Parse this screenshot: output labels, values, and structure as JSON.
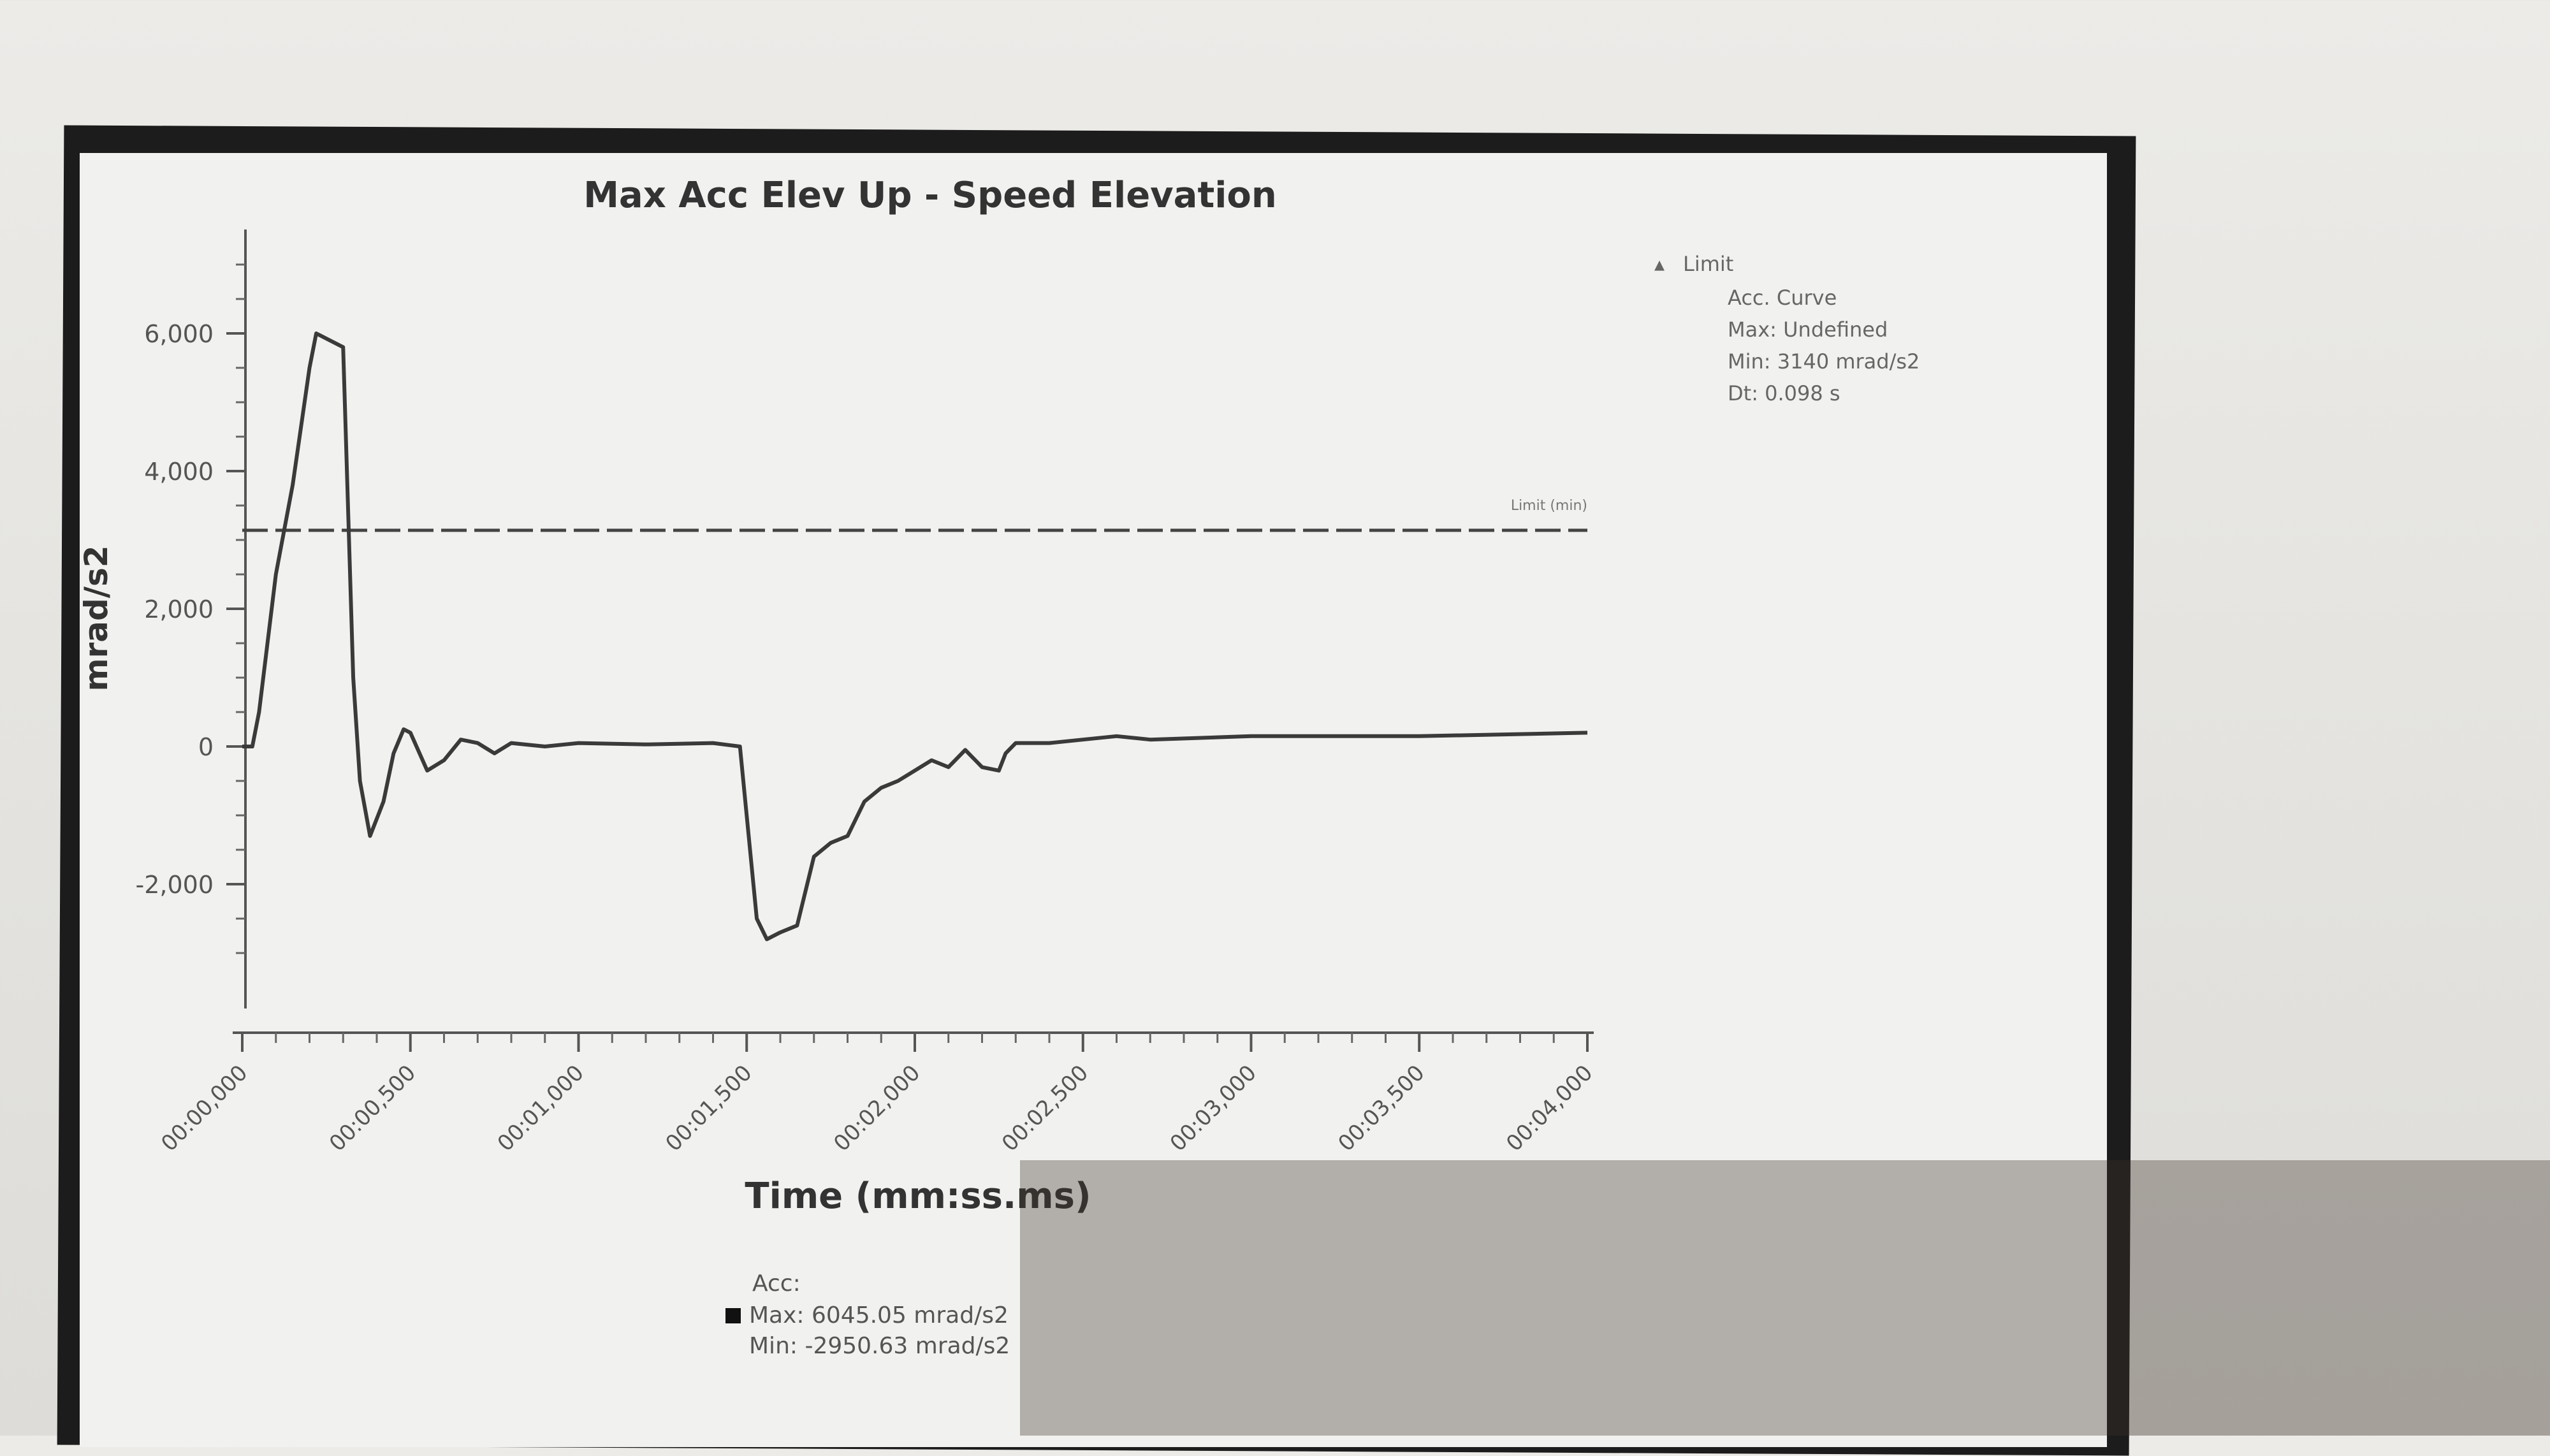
{
  "chart_data": {
    "type": "line",
    "title": "Max Acc Elev Up - Speed Elevation",
    "xlabel": "Time (mm:ss.ms)",
    "ylabel": "mrad/s2",
    "xlim": [
      0,
      4.0
    ],
    "ylim": [
      -3500,
      7500
    ],
    "xticks": [
      {
        "v": 0,
        "label": "00:00,000"
      },
      {
        "v": 0.5,
        "label": "00:00,500"
      },
      {
        "v": 1.0,
        "label": "00:01,000"
      },
      {
        "v": 1.5,
        "label": "00:01,500"
      },
      {
        "v": 2.0,
        "label": "00:02,000"
      },
      {
        "v": 2.5,
        "label": "00:02,500"
      },
      {
        "v": 3.0,
        "label": "00:03,000"
      },
      {
        "v": 3.5,
        "label": "00:03,500"
      },
      {
        "v": 4.0,
        "label": "00:04,000"
      }
    ],
    "yticks": [
      {
        "v": -2000,
        "label": "-2,000"
      },
      {
        "v": 0,
        "label": "0"
      },
      {
        "v": 2000,
        "label": "2,000"
      },
      {
        "v": 4000,
        "label": "4,000"
      },
      {
        "v": 6000,
        "label": "6,000"
      }
    ],
    "grid": false,
    "series": [
      {
        "name": "Acc",
        "color": "#3a3a3a",
        "x": [
          0,
          0.03,
          0.05,
          0.1,
          0.15,
          0.2,
          0.22,
          0.26,
          0.3,
          0.33,
          0.35,
          0.38,
          0.42,
          0.45,
          0.48,
          0.5,
          0.55,
          0.6,
          0.65,
          0.7,
          0.75,
          0.8,
          0.9,
          1.0,
          1.2,
          1.4,
          1.48,
          1.5,
          1.53,
          1.56,
          1.6,
          1.65,
          1.7,
          1.75,
          1.8,
          1.85,
          1.9,
          1.95,
          2.0,
          2.05,
          2.1,
          2.15,
          2.2,
          2.25,
          2.27,
          2.3,
          2.4,
          2.5,
          2.6,
          2.7,
          3.0,
          3.5,
          4.0
        ],
        "y": [
          0,
          0,
          500,
          2500,
          3800,
          5500,
          6000,
          5900,
          5800,
          1000,
          -500,
          -1300,
          -800,
          -100,
          250,
          200,
          -350,
          -200,
          100,
          50,
          -100,
          50,
          0,
          50,
          30,
          50,
          0,
          -1000,
          -2500,
          -2800,
          -2700,
          -2600,
          -1600,
          -1400,
          -1300,
          -800,
          -600,
          -500,
          -350,
          -200,
          -300,
          -50,
          -300,
          -350,
          -100,
          50,
          50,
          100,
          150,
          100,
          150,
          150,
          200
        ]
      }
    ],
    "limit": {
      "value": 3140,
      "label": "Limit (min)",
      "style": "dashed"
    },
    "legend_top": {
      "marker": "Limit",
      "lines": [
        "Acc. Curve",
        "Max: Undefined",
        "Min: 3140 mrad/s2",
        "Dt: 0.098 s"
      ]
    },
    "legend_bottom": {
      "title": "Acc:",
      "lines": [
        "Max: 6045.05 mrad/s2",
        "Min: -2950.63 mrad/s2"
      ]
    }
  }
}
